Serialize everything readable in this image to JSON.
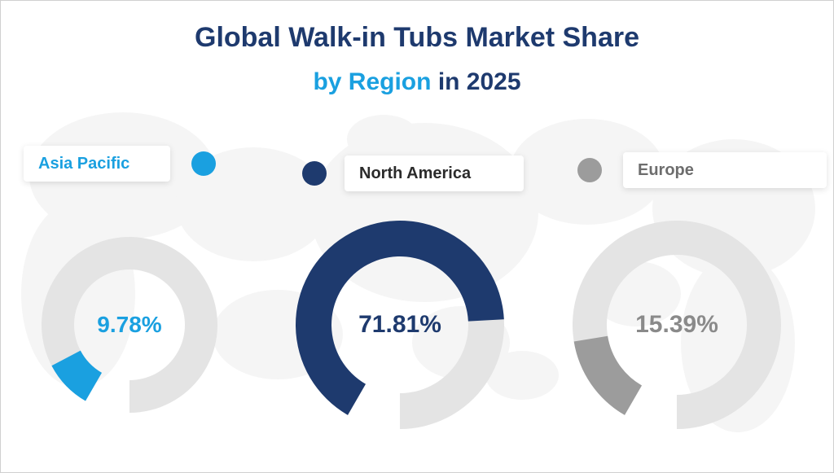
{
  "title": {
    "main": "Global Walk-in Tubs Market Share",
    "by_region": "by Region",
    "in_year": "in 2025",
    "main_color": "#1e3a6e",
    "accent_color": "#1aa0e0",
    "main_fontsize": 34,
    "sub_fontsize": 30
  },
  "background": {
    "map_fill": "#ededed",
    "page_bg": "#ffffff"
  },
  "regions": {
    "asia": {
      "label": "Asia Pacific",
      "value": 9.78,
      "display": "9.78%",
      "color": "#1aa0e0",
      "track_color": "#e4e4e4",
      "text_color": "#1aa0e0",
      "donut_size": 220,
      "thickness": 40,
      "label_fontsize": 28
    },
    "na": {
      "label": "North America",
      "value": 71.81,
      "display": "71.81%",
      "color": "#1e3a6e",
      "track_color": "#e4e4e4",
      "text_color": "#1e3a6e",
      "donut_size": 260,
      "thickness": 44,
      "label_fontsize": 30
    },
    "eu": {
      "label": "Europe",
      "value": 15.39,
      "display": "15.39%",
      "color": "#9c9c9c",
      "track_color": "#e4e4e4",
      "text_color": "#8a8a8a",
      "donut_size": 260,
      "thickness": 42,
      "label_fontsize": 30
    }
  },
  "chart_style": {
    "start_angle_deg": 210,
    "gap_deg": 30,
    "legend_dot_size": 30,
    "legend_fontsize": 20,
    "legend_shadow": "0 2px 8px rgba(0,0,0,0.12)"
  }
}
